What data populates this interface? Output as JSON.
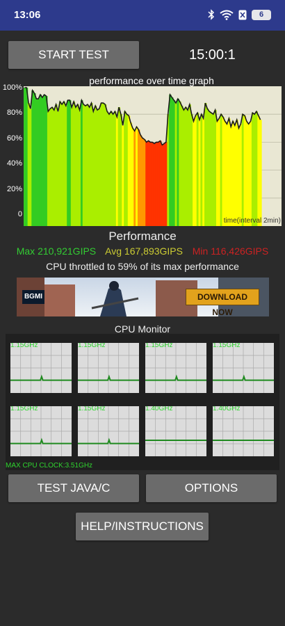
{
  "status_bar": {
    "time": "13:06",
    "battery": "6",
    "icons": [
      "bluetooth-icon",
      "wifi-icon",
      "sim-icon",
      "battery-icon"
    ]
  },
  "controls": {
    "start_test": "START TEST",
    "timer": "15:00:1"
  },
  "graph": {
    "title": "performance over time graph",
    "y_ticks": [
      "100%",
      "80%",
      "60%",
      "40%",
      "20%",
      "0"
    ],
    "x_label": "time(interval 2min)"
  },
  "chart_data": {
    "type": "area",
    "title": "performance over time graph",
    "xlabel": "time(interval 2min)",
    "ylabel": "",
    "ylim": [
      0,
      100
    ],
    "series": [
      {
        "values": [
          99,
          99,
          88,
          84,
          97,
          95,
          91,
          91,
          94,
          92,
          94,
          93,
          82,
          84,
          85,
          83,
          87,
          82,
          89,
          87,
          89,
          86,
          90,
          90,
          85,
          89,
          85,
          87,
          83,
          90,
          87,
          86,
          87,
          85,
          88,
          82,
          86,
          83,
          84,
          88,
          88,
          87,
          82,
          80,
          82,
          80,
          82,
          78,
          85,
          80,
          72,
          82,
          80,
          79,
          74,
          70,
          68,
          71,
          69,
          65,
          63,
          62,
          60,
          61,
          60,
          60,
          59,
          60,
          60,
          61,
          58,
          59,
          60,
          80,
          94,
          92,
          90,
          88,
          91,
          89,
          86,
          83,
          85,
          83,
          87,
          80,
          75,
          79,
          81,
          76,
          80,
          77,
          88,
          84,
          82,
          81,
          80,
          83,
          75,
          77,
          80,
          78,
          75,
          73,
          77,
          71,
          75,
          72,
          76,
          70,
          73,
          80,
          79,
          75,
          73,
          75,
          81,
          80,
          82,
          79,
          76
        ]
      }
    ],
    "throttle_band_color_stops": [
      "#33cc22",
      "#aaee00",
      "#ffff00",
      "#ff9900",
      "#ff3300"
    ]
  },
  "performance": {
    "title": "Performance",
    "max": "Max 210,921GIPS",
    "avg": "Avg 167,893GIPS",
    "min": "Min 116,426GIPS",
    "throttle_text": "CPU throttled to 59% of its max performance",
    "colors": {
      "max": "#33cc33",
      "avg": "#cccc33",
      "min": "#cc2222"
    }
  },
  "ad": {
    "game_logo": "BGMI",
    "cta": "DOWNLOAD NOW"
  },
  "cpu_monitor": {
    "title": "CPU Monitor",
    "cores": [
      {
        "freq": "1.15GHz",
        "level": 0.08
      },
      {
        "freq": "1.15GHz",
        "level": 0.08
      },
      {
        "freq": "1.15GHz",
        "level": 0.08
      },
      {
        "freq": "1.15GHz",
        "level": 0.08
      },
      {
        "freq": "1.15GHz",
        "level": 0.08
      },
      {
        "freq": "1.15GHz",
        "level": 0.08
      },
      {
        "freq": "1.40GHz",
        "level": 0.1
      },
      {
        "freq": "1.40GHz",
        "level": 0.1
      }
    ],
    "max_clock": "MAX CPU CLOCK:3.51GHz"
  },
  "buttons": {
    "test_java": "TEST JAVA/C",
    "options": "OPTIONS",
    "help": "HELP/INSTRUCTIONS"
  }
}
